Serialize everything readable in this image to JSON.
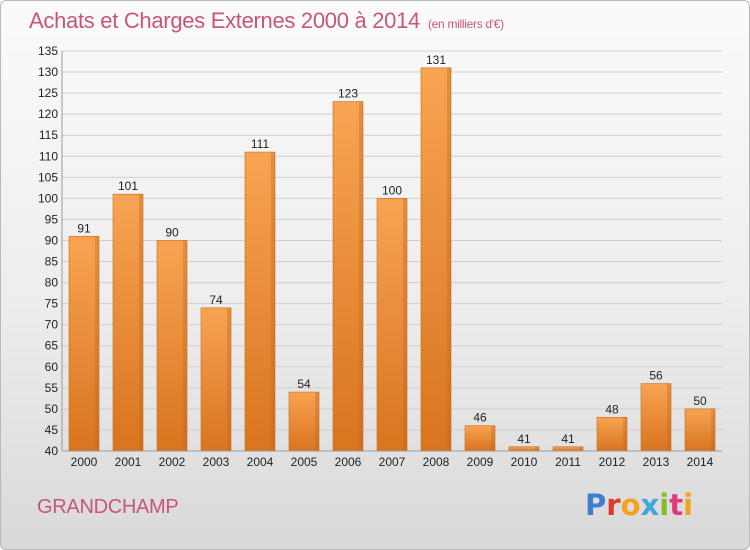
{
  "header": {
    "title": "Achats et Charges Externes 2000 à 2014",
    "subtitle": "(en milliers d'€)"
  },
  "footer": {
    "commune": "GRANDCHAMP",
    "brand": "Proxiti",
    "brand_colors": [
      "#3f7fd0",
      "#e0392b",
      "#f4a11c",
      "#3fa8d8",
      "#84bd29",
      "#e13a7f",
      "#f4a11c"
    ]
  },
  "colors": {
    "bar_light": "#f7a452",
    "bar_dark": "#d9741f",
    "grid": "#cfcfcf",
    "axis_text": "#222222",
    "title": "#c8557b"
  },
  "chart_data": {
    "type": "bar",
    "categories": [
      "2000",
      "2001",
      "2002",
      "2003",
      "2004",
      "2005",
      "2006",
      "2007",
      "2008",
      "2009",
      "2010",
      "2011",
      "2012",
      "2013",
      "2014"
    ],
    "values": [
      91,
      101,
      90,
      74,
      111,
      54,
      123,
      100,
      131,
      46,
      41,
      41,
      48,
      56,
      50
    ],
    "ylim": [
      40,
      135
    ],
    "yticks": [
      40,
      45,
      50,
      55,
      60,
      65,
      70,
      75,
      80,
      85,
      90,
      95,
      100,
      105,
      110,
      115,
      120,
      125,
      130,
      135
    ],
    "grid": true,
    "data_labels": true
  }
}
